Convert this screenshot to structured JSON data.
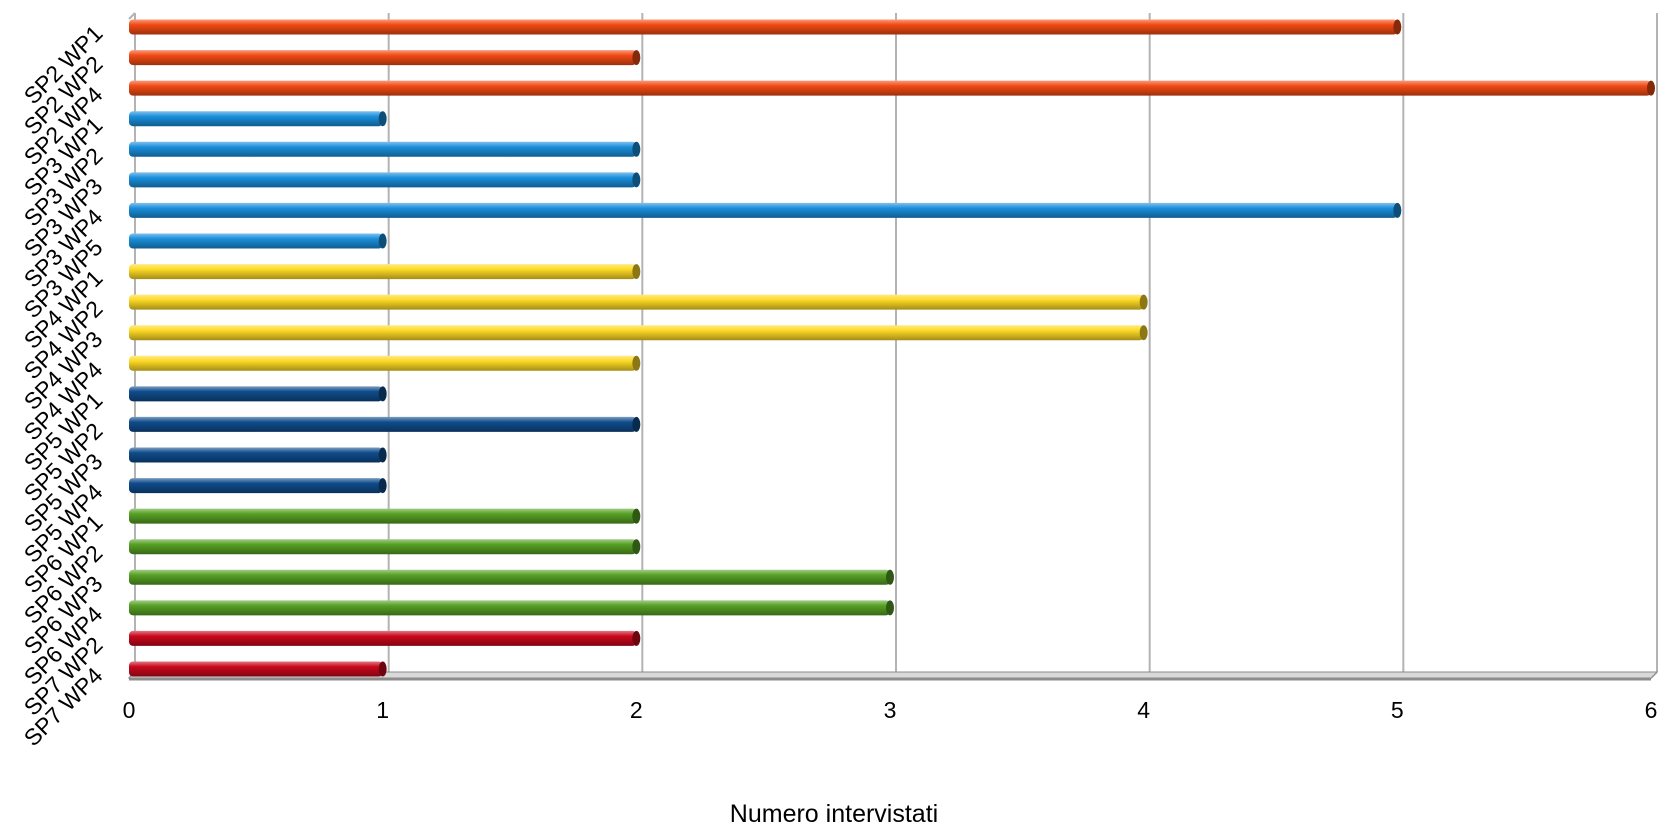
{
  "chart_data": {
    "type": "bar",
    "orientation": "horizontal",
    "xlabel": "Numero intervistati",
    "ylabel": "",
    "xlim": [
      0,
      6
    ],
    "x_ticks": [
      "0",
      "1",
      "2",
      "3",
      "4",
      "5",
      "6"
    ],
    "grid": "vertical",
    "categories": [
      "SP2 WP1",
      "SP2 WP2",
      "SP2 WP4",
      "SP3 WP1",
      "SP3 WP2",
      "SP3 WP3",
      "SP3 WP4",
      "SP3 WP5",
      "SP4 WP1",
      "SP4 WP2",
      "SP4 WP3",
      "SP4 WP4",
      "SP5 WP1",
      "SP5 WP2",
      "SP5 WP3",
      "SP5 WP4",
      "SP6 WP1",
      "SP6 WP2",
      "SP6 WP3",
      "SP6 WP4",
      "SP7 WP2",
      "SP7 WP4"
    ],
    "values": [
      5,
      2,
      6,
      1,
      2,
      2,
      5,
      1,
      2,
      4,
      4,
      2,
      1,
      2,
      1,
      1,
      2,
      2,
      3,
      3,
      2,
      1
    ],
    "bar_colors": [
      "#f24a14",
      "#f24a14",
      "#f24a14",
      "#1a8fdc",
      "#1a8fdc",
      "#1a8fdc",
      "#1a8fdc",
      "#1a8fdc",
      "#fdd924",
      "#fdd924",
      "#fdd924",
      "#fdd924",
      "#0f4c8c",
      "#0f4c8c",
      "#0f4c8c",
      "#0f4c8c",
      "#56a024",
      "#56a024",
      "#56a024",
      "#56a024",
      "#c8071c",
      "#c8071c"
    ],
    "colors": {
      "grid": "#b3b3b3",
      "axis_floor": "#8c8c8c",
      "background": "#ffffff"
    }
  }
}
